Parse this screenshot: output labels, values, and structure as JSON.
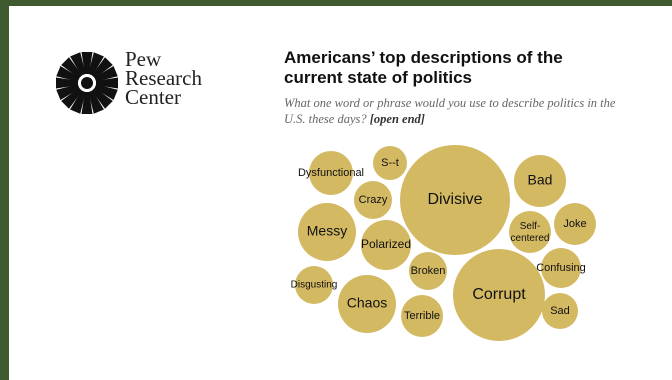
{
  "logo": {
    "brand_lines": [
      "Pew",
      "Research",
      "Center"
    ],
    "trademark": "TM"
  },
  "header": {
    "title": "Americans’ top descriptions of the current state of politics",
    "question": "What one word or phrase would you use to describe politics in the U.S. these days?",
    "question_note": "[open end]"
  },
  "colors": {
    "bubble": "#d4b963",
    "frame": "#3f5a2e"
  },
  "chart_data": {
    "type": "bubble",
    "title": "Americans’ top descriptions of the current state of politics",
    "bubbles": [
      {
        "label": "Divisive",
        "relative_size": 1.0
      },
      {
        "label": "Corrupt",
        "relative_size": 0.84
      },
      {
        "label": "Messy",
        "relative_size": 0.48
      },
      {
        "label": "Chaos",
        "relative_size": 0.43
      },
      {
        "label": "Bad",
        "relative_size": 0.4
      },
      {
        "label": "Polarized",
        "relative_size": 0.36
      },
      {
        "label": "Dysfunctional",
        "relative_size": 0.34
      },
      {
        "label": "Self-centered",
        "relative_size": 0.3
      },
      {
        "label": "Terrible",
        "relative_size": 0.29
      },
      {
        "label": "Confusing",
        "relative_size": 0.29
      },
      {
        "label": "Joke",
        "relative_size": 0.28
      },
      {
        "label": "Crazy",
        "relative_size": 0.26
      },
      {
        "label": "Disgusting",
        "relative_size": 0.26
      },
      {
        "label": "Broken",
        "relative_size": 0.26
      },
      {
        "label": "Sad",
        "relative_size": 0.24
      },
      {
        "label": "S--t",
        "relative_size": 0.24
      }
    ]
  }
}
